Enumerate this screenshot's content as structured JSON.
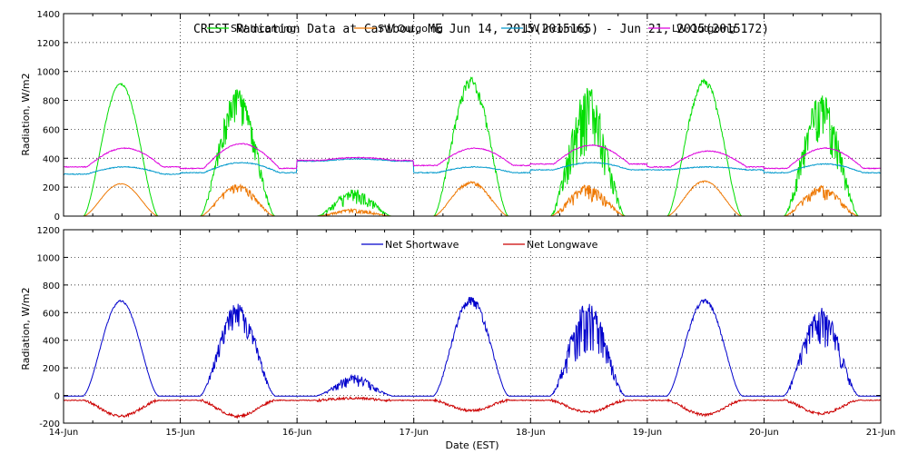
{
  "chart_data": [
    {
      "type": "line",
      "title": "CREST Radiation Data at Caribou, ME   Jun 14, 2015(2015165) - Jun 21, 2015(2015172)",
      "ylabel": "Radiation, W/m2",
      "xlabel": "",
      "ylim": [
        0,
        1400
      ],
      "yticks": [
        0,
        200,
        400,
        600,
        800,
        1000,
        1200,
        1400
      ],
      "xlim": [
        0,
        7
      ],
      "xtick_labels": [],
      "grid": true,
      "legend_position": "top",
      "series": [
        {
          "name": "SW Incoming",
          "color": "#00dd00",
          "kind": "sw",
          "peaks": [
            920,
            880,
            190,
            960,
            900,
            950,
            850
          ],
          "noise": [
            0.02,
            0.3,
            0.6,
            0.1,
            0.55,
            0.05,
            0.45
          ]
        },
        {
          "name": "SW Outgoing",
          "color": "#ee7700",
          "kind": "sw",
          "peaks": [
            225,
            220,
            50,
            240,
            220,
            245,
            210
          ],
          "noise": [
            0.02,
            0.3,
            0.6,
            0.1,
            0.55,
            0.05,
            0.45
          ]
        },
        {
          "name": "LW Incoming",
          "color": "#0099cc",
          "kind": "lw",
          "base": [
            290,
            300,
            380,
            300,
            320,
            320,
            300
          ],
          "amp": [
            50,
            70,
            15,
            40,
            50,
            20,
            60
          ]
        },
        {
          "name": "LW Outgoing",
          "color": "#dd00dd",
          "kind": "lw",
          "base": [
            340,
            330,
            385,
            350,
            360,
            340,
            330
          ],
          "amp": [
            130,
            170,
            20,
            120,
            130,
            110,
            140
          ]
        }
      ]
    },
    {
      "type": "line",
      "title": "",
      "ylabel": "Radiation, W/m2",
      "xlabel": "Date (EST)",
      "ylim": [
        -200,
        1200
      ],
      "yticks": [
        -200,
        0,
        200,
        400,
        600,
        800,
        1000,
        1200
      ],
      "xlim": [
        0,
        7
      ],
      "xtick_labels": [
        "14-Jun",
        "15-Jun",
        "16-Jun",
        "17-Jun",
        "18-Jun",
        "19-Jun",
        "20-Jun",
        "21-Jun"
      ],
      "grid": true,
      "legend_position": "top",
      "series": [
        {
          "name": "Net Shortwave",
          "color": "#0000cc",
          "kind": "netsw",
          "peaks": [
            690,
            670,
            150,
            720,
            680,
            700,
            640
          ],
          "noise": [
            0.02,
            0.3,
            0.6,
            0.1,
            0.55,
            0.05,
            0.45
          ]
        },
        {
          "name": "Net Longwave",
          "color": "#cc0000",
          "kind": "netlw",
          "troughs": [
            -150,
            -150,
            -20,
            -110,
            -120,
            -140,
            -130
          ]
        }
      ]
    }
  ]
}
